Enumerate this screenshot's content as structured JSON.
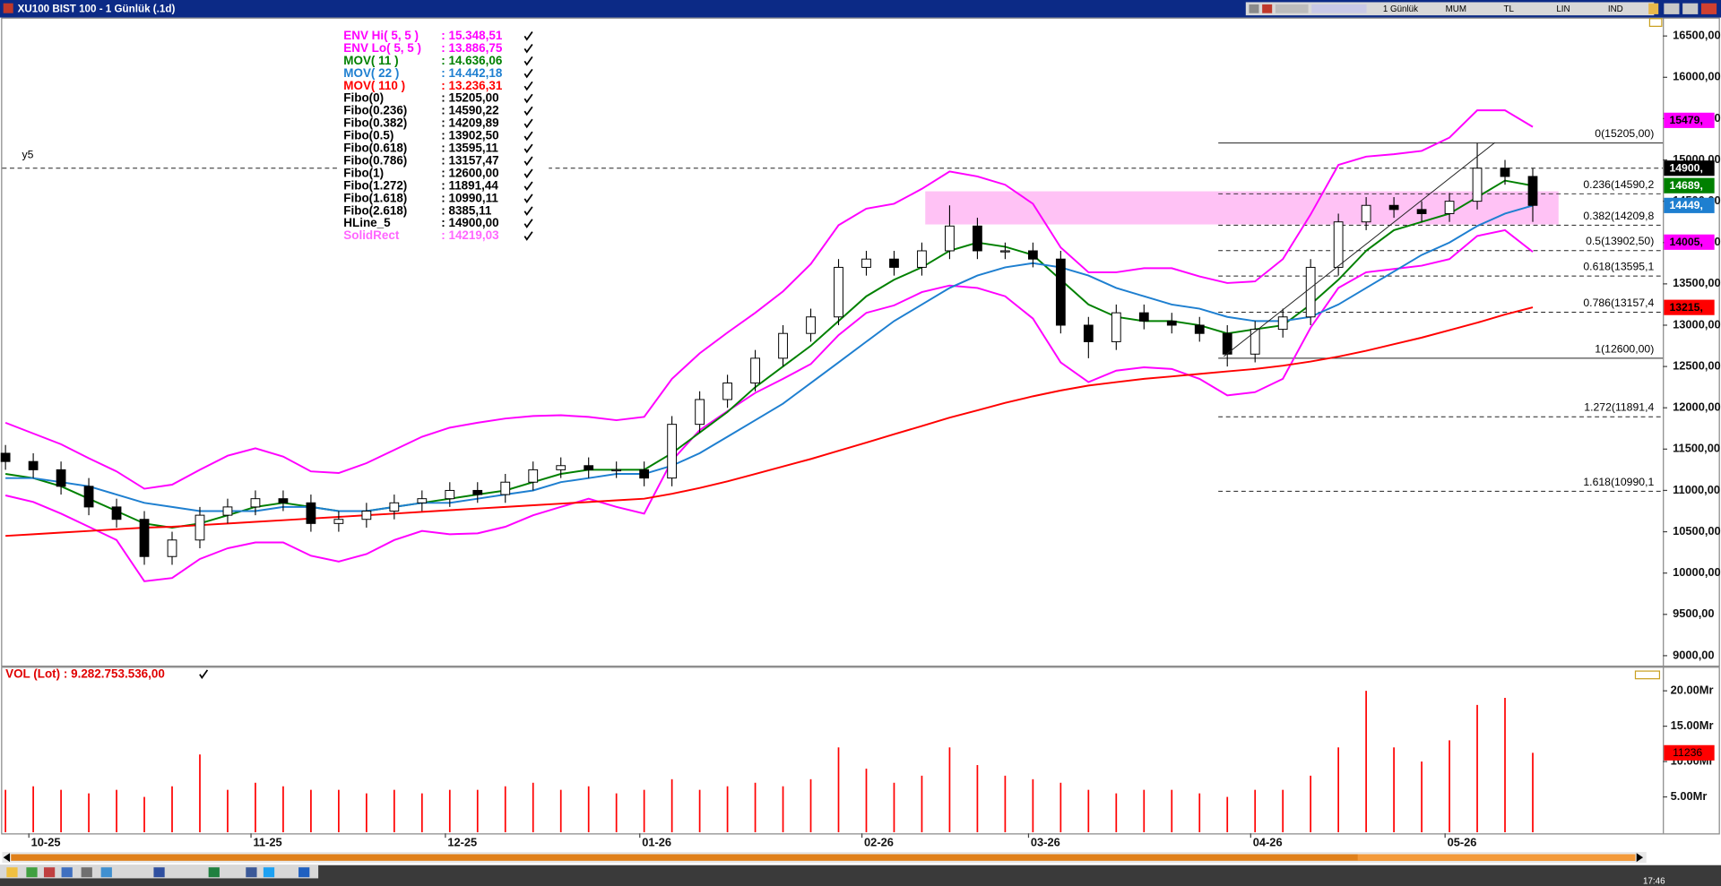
{
  "window": {
    "title": "XU100 BIST 100 - 1 Günlük (.1d)",
    "toolbar": [
      "1 Günlük",
      "MUM",
      "TL",
      "LIN",
      "IND"
    ],
    "clock": "17:46"
  },
  "chart_data": [
    {
      "type": "candlestick",
      "categories": [
        null,
        "10-25",
        null,
        null,
        null,
        null,
        null,
        null,
        null,
        "11-25",
        null,
        null,
        null,
        null,
        null,
        null,
        "12-25",
        null,
        null,
        null,
        null,
        null,
        null,
        "01-26",
        null,
        null,
        null,
        null,
        null,
        null,
        null,
        "02-26",
        null,
        null,
        null,
        null,
        null,
        "03-26",
        null,
        null,
        null,
        null,
        null,
        null,
        null,
        "04-26",
        null,
        null,
        null,
        null,
        null,
        null,
        "05-26",
        null,
        null,
        null
      ],
      "open": [
        11450,
        11350,
        11250,
        11050,
        10800,
        10650,
        10200,
        10400,
        10700,
        10800,
        10900,
        10850,
        10600,
        10650,
        10750,
        10850,
        10900,
        11000,
        10950,
        11100,
        11250,
        11300,
        11250,
        11250,
        11150,
        11800,
        12100,
        12300,
        12600,
        12900,
        13100,
        13700,
        13800,
        13700,
        13900,
        14200,
        13900,
        13900,
        13800,
        13000,
        12800,
        13150,
        13050,
        13000,
        12900,
        12650,
        12950,
        13100,
        13700,
        14250,
        14450,
        14400,
        14350,
        14500,
        14900,
        14800
      ],
      "high": [
        11550,
        11450,
        11350,
        11150,
        10900,
        10750,
        10500,
        10800,
        10900,
        11000,
        11000,
        10950,
        10750,
        10850,
        10950,
        11000,
        11100,
        11100,
        11200,
        11350,
        11400,
        11400,
        11350,
        11350,
        11900,
        12200,
        12400,
        12700,
        13000,
        13200,
        13800,
        13900,
        13900,
        14000,
        14450,
        14300,
        14000,
        14000,
        13900,
        13100,
        13250,
        13250,
        13150,
        13100,
        13000,
        13050,
        13200,
        13800,
        14350,
        14550,
        14550,
        14500,
        14600,
        15205,
        15000,
        14900
      ],
      "low": [
        11250,
        11150,
        10950,
        10700,
        10550,
        10100,
        10100,
        10300,
        10600,
        10700,
        10750,
        10500,
        10500,
        10550,
        10650,
        10750,
        10800,
        10850,
        10850,
        11000,
        11150,
        11150,
        11150,
        11050,
        11050,
        11700,
        12000,
        12200,
        12500,
        12800,
        13000,
        13600,
        13600,
        13600,
        13800,
        13800,
        13800,
        13700,
        12900,
        12600,
        12700,
        12950,
        12900,
        12800,
        12500,
        12550,
        12850,
        13000,
        13600,
        14150,
        14300,
        14250,
        14250,
        14400,
        14700,
        14250
      ],
      "close": [
        11350,
        11250,
        11050,
        10800,
        10650,
        10200,
        10400,
        10700,
        10800,
        10900,
        10850,
        10600,
        10650,
        10750,
        10850,
        10900,
        11000,
        10950,
        11100,
        11250,
        11300,
        11250,
        11250,
        11150,
        11800,
        12100,
        12300,
        12600,
        12900,
        13100,
        13700,
        13800,
        13700,
        13900,
        14200,
        13900,
        13900,
        13800,
        13000,
        12800,
        13150,
        13050,
        13000,
        12900,
        12650,
        12950,
        13100,
        13700,
        14250,
        14450,
        14400,
        14350,
        14500,
        14900,
        14800,
        14450
      ],
      "ylim": [
        8880,
        16710
      ],
      "yticks": [
        {
          "value": 9000,
          "label": "9000,00"
        },
        {
          "value": 9500,
          "label": "9500,00"
        },
        {
          "value": 10000,
          "label": "10000,00"
        },
        {
          "value": 10500,
          "label": "10500,00"
        },
        {
          "value": 11000,
          "label": "11000,00"
        },
        {
          "value": 11500,
          "label": "11500,00"
        },
        {
          "value": 12000,
          "label": "12000,00"
        },
        {
          "value": 12500,
          "label": "12500,00"
        },
        {
          "value": 13000,
          "label": "13000,00"
        },
        {
          "value": 13500,
          "label": "13500,00"
        },
        {
          "value": 14000,
          "label": "14000,00"
        },
        {
          "value": 14500,
          "label": "14500,00"
        },
        {
          "value": 15000,
          "label": "15000,00"
        },
        {
          "value": 15500,
          "label": "15500,00"
        },
        {
          "value": 16000,
          "label": "16000,00"
        },
        {
          "value": 16500,
          "label": "16500,00"
        }
      ],
      "series": [
        {
          "name": "ENV Hi( 5, 5 )",
          "value_text": ": 15.348,51",
          "color": "#ff00ff",
          "values": [
            11820,
            11690,
            11560,
            11390,
            11230,
            11020,
            11070,
            11250,
            11420,
            11510,
            11410,
            11230,
            11210,
            11330,
            11490,
            11650,
            11760,
            11820,
            11870,
            11900,
            11910,
            11890,
            11850,
            11890,
            12350,
            12660,
            12910,
            13150,
            13410,
            13740,
            14210,
            14410,
            14470,
            14650,
            14860,
            14800,
            14700,
            14470,
            13940,
            13640,
            13640,
            13690,
            13690,
            13590,
            13510,
            13530,
            13800,
            14340,
            14940,
            15040,
            15070,
            15110,
            15270,
            15600,
            15600,
            15400
          ]
        },
        {
          "name": "ENV Lo( 5, 5 )",
          "value_text": ": 13.886,75",
          "color": "#ff00ff",
          "values": [
            10940,
            10860,
            10720,
            10560,
            10400,
            9900,
            9940,
            10170,
            10300,
            10370,
            10370,
            10210,
            10140,
            10230,
            10400,
            10510,
            10470,
            10480,
            10560,
            10700,
            10800,
            10900,
            10800,
            10720,
            11360,
            11730,
            11960,
            12180,
            12350,
            12530,
            12880,
            13150,
            13240,
            13400,
            13480,
            13450,
            13350,
            13080,
            12550,
            12310,
            12450,
            12490,
            12470,
            12350,
            12150,
            12190,
            12350,
            12970,
            13450,
            13640,
            13680,
            13720,
            13800,
            14080,
            14150,
            13887
          ]
        },
        {
          "name": "MOV( 11 )",
          "value_text": ": 14.636,06",
          "color": "#008000",
          "values": [
            11200,
            11150,
            11050,
            10900,
            10750,
            10600,
            10550,
            10600,
            10700,
            10800,
            10850,
            10800,
            10750,
            10750,
            10800,
            10850,
            10900,
            10950,
            11000,
            11100,
            11200,
            11250,
            11250,
            11250,
            11450,
            11700,
            11950,
            12250,
            12500,
            12750,
            13050,
            13350,
            13550,
            13700,
            13900,
            14000,
            13950,
            13850,
            13550,
            13250,
            13100,
            13050,
            13050,
            13000,
            12900,
            12950,
            13000,
            13250,
            13550,
            13900,
            14150,
            14250,
            14350,
            14550,
            14750,
            14689
          ]
        },
        {
          "name": "MOV( 22 )",
          "value_text": ": 14.442,18",
          "color": "#1e7fd0",
          "values": [
            11150,
            11150,
            11100,
            11050,
            10950,
            10850,
            10800,
            10750,
            10750,
            10750,
            10800,
            10800,
            10750,
            10750,
            10800,
            10850,
            10850,
            10900,
            10950,
            11000,
            11100,
            11150,
            11200,
            11200,
            11300,
            11450,
            11650,
            11850,
            12050,
            12300,
            12550,
            12800,
            13050,
            13250,
            13450,
            13600,
            13700,
            13750,
            13700,
            13600,
            13450,
            13350,
            13250,
            13200,
            13100,
            13050,
            13050,
            13100,
            13250,
            13450,
            13650,
            13850,
            14000,
            14200,
            14350,
            14449
          ]
        },
        {
          "name": "MOV( 110 )",
          "value_text": ": 13.236,31",
          "color": "#ff0000",
          "values": [
            10450,
            10470,
            10490,
            10510,
            10530,
            10550,
            10560,
            10580,
            10600,
            10620,
            10640,
            10660,
            10680,
            10700,
            10720,
            10740,
            10760,
            10780,
            10800,
            10820,
            10840,
            10860,
            10880,
            10900,
            10960,
            11030,
            11110,
            11200,
            11290,
            11380,
            11480,
            11580,
            11680,
            11780,
            11880,
            11970,
            12060,
            12140,
            12210,
            12270,
            12310,
            12350,
            12380,
            12410,
            12440,
            12470,
            12510,
            12560,
            12620,
            12690,
            12770,
            12850,
            12940,
            13030,
            13130,
            13216
          ]
        }
      ],
      "levels": [
        {
          "name": "Fibo(0)",
          "value_text": ": 15205,00",
          "value": 15205,
          "label": "0(15205,00)",
          "dashed": false
        },
        {
          "name": "Fibo(0.236)",
          "value_text": ": 14590,22",
          "value": 14590.22,
          "label": "0.236(14590,2",
          "dashed": true
        },
        {
          "name": "Fibo(0.382)",
          "value_text": ": 14209,89",
          "value": 14209.89,
          "label": "0.382(14209,8",
          "dashed": true
        },
        {
          "name": "Fibo(0.5)",
          "value_text": ": 13902,50",
          "value": 13902.5,
          "label": "0.5(13902,50)",
          "dashed": true
        },
        {
          "name": "Fibo(0.618)",
          "value_text": ": 13595,11",
          "value": 13595.11,
          "label": "0.618(13595,1",
          "dashed": true
        },
        {
          "name": "Fibo(0.786)",
          "value_text": ": 13157,47",
          "value": 13157.47,
          "label": "0.786(13157,4",
          "dashed": true
        },
        {
          "name": "Fibo(1)",
          "value_text": ": 12600,00",
          "value": 12600,
          "label": "1(12600,00)",
          "dashed": false
        },
        {
          "name": "Fibo(1.272)",
          "value_text": ": 11891,44",
          "value": 11891.44,
          "label": "1.272(11891,4",
          "dashed": true
        },
        {
          "name": "Fibo(1.618)",
          "value_text": ": 10990,11",
          "value": 10990.11,
          "label": "1.618(10990,1",
          "dashed": true
        },
        {
          "name": "Fibo(2.618)",
          "value_text": ": 8385,11"
        },
        {
          "name": "HLine_5",
          "value_text": ": 14900,00",
          "value": 14900,
          "label": "y5",
          "dashed": true,
          "full": true
        }
      ],
      "rect": {
        "name": "SolidRect",
        "value_text": ": 14219,03",
        "color": "#ff66ff",
        "fill": "#ffc2f5",
        "range": [
          14219.03,
          14620
        ]
      },
      "tags": [
        {
          "value": 15479,
          "label": "15479,",
          "color": "#ff00ff",
          "text_color": "#000000"
        },
        {
          "value": 14900,
          "label": "14900,",
          "color": "#000000",
          "text_color": "#ffffff"
        },
        {
          "value": 14689,
          "label": "14689,",
          "color": "#008000",
          "text_color": "#ffffff"
        },
        {
          "value": 14449,
          "label": "14449,",
          "color": "#1e7fd0",
          "text_color": "#ffffff"
        },
        {
          "value": 14005,
          "label": "14005,",
          "color": "#ff00ff",
          "text_color": "#000000"
        },
        {
          "value": 13215,
          "label": "13215,",
          "color": "#ff0000",
          "text_color": "#000000"
        }
      ]
    },
    {
      "type": "bar",
      "title": "VOL (Lot) : 9.282.753.536,00",
      "color": "#ff0000",
      "values": [
        6,
        6.5,
        6,
        5.5,
        6,
        5,
        6.5,
        11,
        6,
        7,
        6.5,
        6,
        6,
        5.5,
        6,
        5.5,
        6,
        6,
        6.5,
        7,
        6,
        6.5,
        5.5,
        6,
        7.5,
        6,
        6.5,
        7,
        6.5,
        7.5,
        12,
        9,
        7,
        8,
        12,
        9.5,
        8,
        7.5,
        7,
        6,
        5.5,
        6,
        6,
        5.5,
        5,
        6,
        6,
        8,
        12,
        20,
        12,
        10,
        13,
        18,
        19,
        11.236
      ],
      "ylim": [
        0,
        21.24
      ],
      "yticks": [
        {
          "value": 5,
          "label": "5.00Mr"
        },
        {
          "value": 10,
          "label": "10.00Mr"
        },
        {
          "value": 15,
          "label": "15.00Mr"
        },
        {
          "value": 20,
          "label": "20.00Mr"
        }
      ],
      "tags": [
        {
          "value": 11.236,
          "label": "11236",
          "color": "#ff0000",
          "text_color": "#000000"
        }
      ]
    }
  ]
}
